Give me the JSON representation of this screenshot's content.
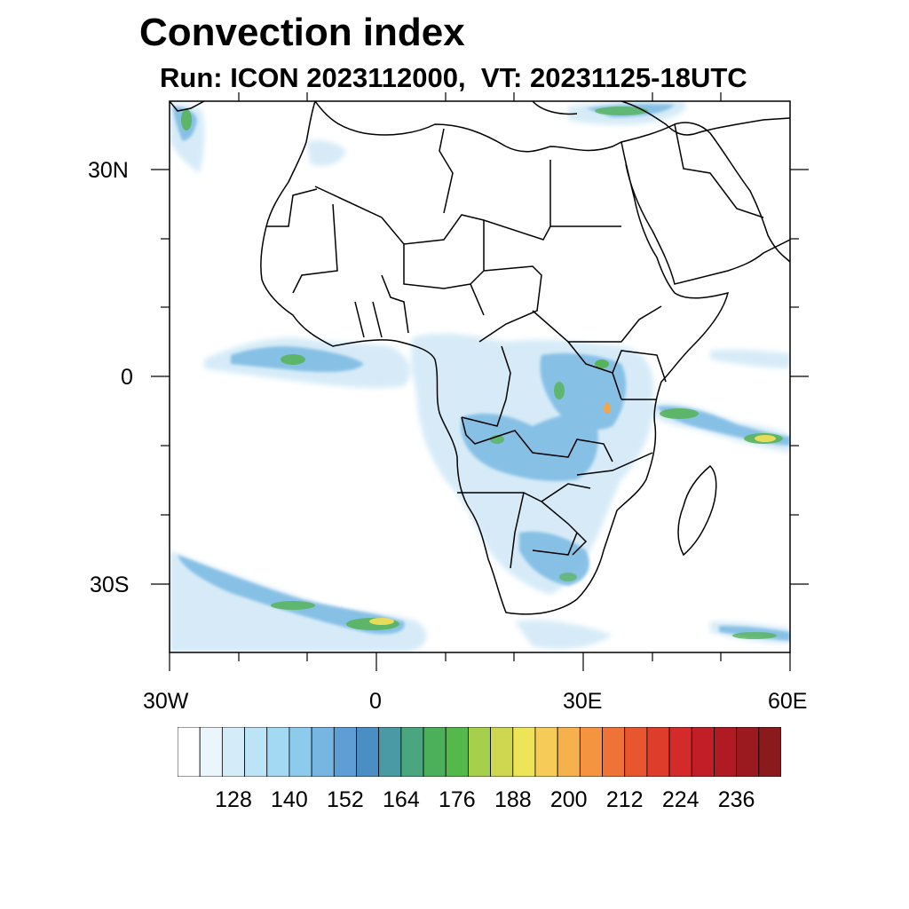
{
  "title": "Convection index",
  "subtitle": "Run: ICON 2023112000,  VT: 20231125-18UTC",
  "axes": {
    "x_labels": [
      "30W",
      "0",
      "30E",
      "60E"
    ],
    "y_labels": [
      "30N",
      "0",
      "30S"
    ],
    "lon_range": [
      -30,
      60
    ],
    "lat_range": [
      -40,
      40
    ]
  },
  "colorbar": {
    "labels": [
      "128",
      "140",
      "152",
      "164",
      "176",
      "188",
      "200",
      "212",
      "224",
      "236"
    ],
    "colors": [
      "#ffffff",
      "#eaf5fc",
      "#d3ecf8",
      "#bde3f6",
      "#a4d9f4",
      "#8ccbec",
      "#77b6e2",
      "#5f9ed4",
      "#4b8ec4",
      "#4a9aa6",
      "#4aa67e",
      "#4cb05a",
      "#55b84a",
      "#a6cf4c",
      "#cfd64f",
      "#ede458",
      "#f6cb58",
      "#f6b04c",
      "#f49340",
      "#ef7336",
      "#e7562e",
      "#dd3d2a",
      "#d42a2a",
      "#c21e27",
      "#af1a23",
      "#9b1a1f",
      "#8a1a1c"
    ]
  },
  "map": {
    "region": "Africa and Middle East",
    "coastline_color": "#000000",
    "index_colors": {
      "light": "#cfe8f6",
      "mid": "#7fbce4",
      "dark": "#5a98cf",
      "green": "#58b45a",
      "yellow": "#e6dc5a",
      "orange": "#f0a54a"
    }
  }
}
